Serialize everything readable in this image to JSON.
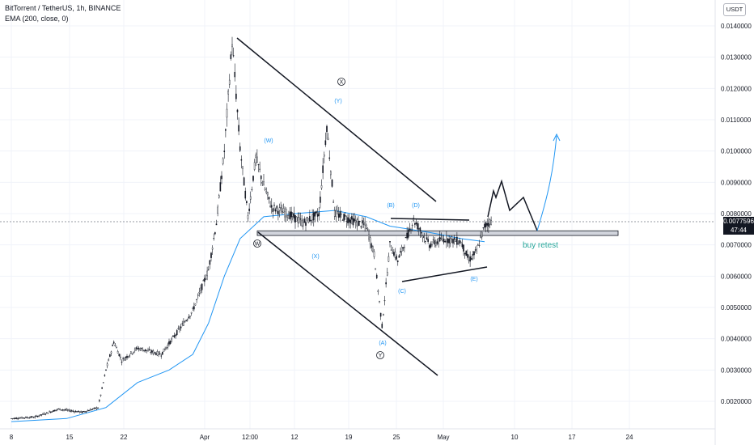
{
  "header": {
    "title": "BitTorrent / TetherUS, 1h, BINANCE",
    "indicator": "EMA (200, close, 0)",
    "currency": "USDT"
  },
  "price_badge": {
    "price": "0.0077596",
    "countdown": "47:44"
  },
  "colors": {
    "candle": "#131722",
    "ema": "#2196f3",
    "annotation": "#2196f3",
    "zone_fill": "#d1d4dc",
    "buy_retest": "#26a69a",
    "crosshair": "#9598a1",
    "grid": "#f0f3fa"
  },
  "chart_data": {
    "type": "candlestick",
    "title": "BitTorrent / TetherUS, 1h, BINANCE",
    "ylim": [
      0.0014,
      0.0145
    ],
    "y_ticks": [
      "0.0140000",
      "0.0130000",
      "0.0120000",
      "0.0110000",
      "0.0100000",
      "0.0090000",
      "0.0080000",
      "0.0070000",
      "0.0060000",
      "0.0050000",
      "0.0040000",
      "0.0030000",
      "0.0020000"
    ],
    "x_ticks": [
      "8",
      "15",
      "22",
      "Apr",
      "12:00",
      "12",
      "19",
      "25",
      "May",
      "10",
      "17",
      "24"
    ],
    "price_path": [
      [
        "Mar 8",
        0.00145
      ],
      [
        "Mar 11",
        0.0015
      ],
      [
        "Mar 14",
        0.00175
      ],
      [
        "Mar 17",
        0.00165
      ],
      [
        "Mar 19",
        0.0018
      ],
      [
        "Mar 20",
        0.003
      ],
      [
        "Mar 21",
        0.0039
      ],
      [
        "Mar 22",
        0.0033
      ],
      [
        "Mar 24",
        0.0037
      ],
      [
        "Mar 27",
        0.0035
      ],
      [
        "Mar 29",
        0.0042
      ],
      [
        "Mar 31",
        0.0049
      ],
      [
        "Apr 2",
        0.0062
      ],
      [
        "Apr 3",
        0.0077
      ],
      [
        "Apr 4",
        0.01
      ],
      [
        "Apr 5",
        0.0135
      ],
      [
        "Apr 5.5",
        0.0118
      ],
      [
        "Apr 6",
        0.0101
      ],
      [
        "Apr 7",
        0.0079
      ],
      [
        "Apr 8",
        0.0098
      ],
      [
        "Apr 9",
        0.0089
      ],
      [
        "Apr 10",
        0.0082
      ],
      [
        "Apr 12",
        0.008
      ],
      [
        "Apr 14",
        0.0077
      ],
      [
        "Apr 16",
        0.008
      ],
      [
        "Apr 17",
        0.0108
      ],
      [
        "Apr 18",
        0.008
      ],
      [
        "Apr 20",
        0.0078
      ],
      [
        "Apr 22",
        0.0076
      ],
      [
        "Apr 23",
        0.0067
      ],
      [
        "Apr 24",
        0.0044
      ],
      [
        "Apr 25",
        0.007
      ],
      [
        "Apr 26",
        0.0065
      ],
      [
        "Apr 28",
        0.0078
      ],
      [
        "Apr 30",
        0.007
      ],
      [
        "May 2",
        0.0072
      ],
      [
        "May 4",
        0.0071
      ],
      [
        "May 5",
        0.0065
      ],
      [
        "May 6",
        0.0068
      ],
      [
        "May 7",
        0.0076
      ],
      [
        "May 8",
        0.0078
      ]
    ],
    "ema_path": [
      [
        "Mar 8",
        0.00135
      ],
      [
        "Mar 15",
        0.00145
      ],
      [
        "Mar 20",
        0.0018
      ],
      [
        "Mar 24",
        0.0026
      ],
      [
        "Mar 28",
        0.003
      ],
      [
        "Mar 31",
        0.0035
      ],
      [
        "Apr 2",
        0.0045
      ],
      [
        "Apr 4",
        0.006
      ],
      [
        "Apr 6",
        0.0072
      ],
      [
        "Apr 9",
        0.0079
      ],
      [
        "Apr 13",
        0.008
      ],
      [
        "Apr 18",
        0.0081
      ],
      [
        "Apr 22",
        0.0079
      ],
      [
        "Apr 25",
        0.0076
      ],
      [
        "Apr 30",
        0.0074
      ],
      [
        "May 4",
        0.0072
      ],
      [
        "May 7",
        0.0071
      ]
    ],
    "annotations": {
      "wave_labels": [
        "(W)",
        "(X)",
        "(Y)",
        "(A)",
        "(B)",
        "(C)",
        "(D)",
        "(E)"
      ],
      "circled_labels": [
        "W",
        "X",
        "Y"
      ],
      "zone_label": "buy retest",
      "zone_range": [
        0.0073,
        0.00745
      ]
    }
  }
}
